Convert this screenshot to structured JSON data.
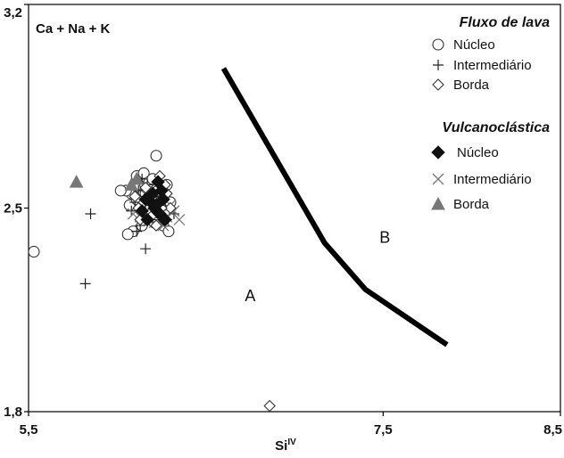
{
  "chart_data": {
    "type": "scatter",
    "xlabel": "Si",
    "xlabel_sup": "IV",
    "ylabel": "Ca + Na + K",
    "xlim": [
      5.5,
      8.5
    ],
    "ylim": [
      1.8,
      3.2
    ],
    "xticks": [
      "5,5",
      "7,5",
      "8,5"
    ],
    "yticks": [
      "1,8",
      "2,5",
      "3,2"
    ],
    "xtick_values": [
      5.5,
      7.5,
      8.5
    ],
    "ytick_values": [
      1.8,
      2.5,
      3.2
    ],
    "grid": false,
    "legend_placement": "top-right",
    "groups": [
      {
        "title": "Fluxo de lava",
        "series": [
          {
            "name": "Núcleo",
            "marker": "circle-open",
            "points": [
              [
                5.53,
                2.35
              ],
              [
                6.22,
                2.68
              ],
              [
                6.11,
                2.61
              ],
              [
                6.15,
                2.62
              ],
              [
                6.12,
                2.58
              ],
              [
                6.1,
                2.57
              ],
              [
                6.18,
                2.59
              ],
              [
                6.25,
                2.54
              ],
              [
                6.2,
                2.53
              ],
              [
                6.16,
                2.55
              ],
              [
                6.08,
                2.55
              ],
              [
                6.05,
                2.56
              ],
              [
                6.13,
                2.51
              ],
              [
                6.19,
                2.5
              ],
              [
                6.27,
                2.49
              ],
              [
                6.3,
                2.52
              ],
              [
                6.24,
                2.47
              ],
              [
                6.17,
                2.47
              ],
              [
                6.21,
                2.45
              ],
              [
                6.26,
                2.44
              ],
              [
                6.29,
                2.42
              ],
              [
                6.09,
                2.42
              ],
              [
                6.14,
                2.44
              ],
              [
                6.23,
                2.56
              ],
              [
                6.28,
                2.58
              ],
              [
                6.02,
                2.56
              ],
              [
                6.07,
                2.51
              ],
              [
                6.11,
                2.53
              ],
              [
                6.2,
                2.6
              ],
              [
                6.06,
                2.41
              ]
            ]
          },
          {
            "name": "Intermediário",
            "marker": "plus",
            "points": [
              [
                5.85,
                2.48
              ],
              [
                6.16,
                2.36
              ],
              [
                5.82,
                2.24
              ],
              [
                6.12,
                2.56
              ],
              [
                6.1,
                2.52
              ],
              [
                6.15,
                2.47
              ],
              [
                6.18,
                2.51
              ],
              [
                6.22,
                2.54
              ],
              [
                6.13,
                2.44
              ],
              [
                6.2,
                2.46
              ],
              [
                6.25,
                2.5
              ],
              [
                6.08,
                2.49
              ],
              [
                6.17,
                2.58
              ],
              [
                6.28,
                2.46
              ],
              [
                6.32,
                2.48
              ],
              [
                6.11,
                2.42
              ],
              [
                6.14,
                2.6
              ]
            ]
          },
          {
            "name": "Borda",
            "marker": "diamond-open",
            "points": [
              [
                6.86,
                1.82
              ],
              [
                6.24,
                2.61
              ],
              [
                6.27,
                2.58
              ],
              [
                6.2,
                2.55
              ],
              [
                6.23,
                2.52
              ],
              [
                6.15,
                2.52
              ],
              [
                6.3,
                2.5
              ],
              [
                6.18,
                2.48
              ],
              [
                6.26,
                2.46
              ],
              [
                6.12,
                2.5
              ],
              [
                6.22,
                2.44
              ],
              [
                6.28,
                2.55
              ],
              [
                6.16,
                2.57
              ],
              [
                6.1,
                2.54
              ],
              [
                6.25,
                2.5
              ],
              [
                6.19,
                2.47
              ],
              [
                6.13,
                2.46
              ]
            ]
          }
        ]
      },
      {
        "title": "Vulcanoclástica",
        "series": [
          {
            "name": "Núcleo",
            "marker": "diamond-filled",
            "points": [
              [
                6.25,
                2.56
              ],
              [
                6.19,
                2.52
              ],
              [
                6.27,
                2.46
              ],
              [
                6.21,
                2.5
              ],
              [
                6.16,
                2.53
              ],
              [
                6.23,
                2.59
              ],
              [
                6.14,
                2.49
              ],
              [
                6.24,
                2.48
              ],
              [
                6.2,
                2.55
              ],
              [
                6.17,
                2.46
              ],
              [
                6.26,
                2.53
              ],
              [
                6.22,
                2.51
              ]
            ]
          },
          {
            "name": "Intermediário",
            "marker": "x",
            "points": [
              [
                6.15,
                2.5
              ],
              [
                6.18,
                2.46
              ],
              [
                6.22,
                2.48
              ],
              [
                6.26,
                2.44
              ],
              [
                6.3,
                2.51
              ],
              [
                6.2,
                2.53
              ],
              [
                6.13,
                2.47
              ],
              [
                6.24,
                2.5
              ],
              [
                6.28,
                2.47
              ],
              [
                6.35,
                2.46
              ],
              [
                6.17,
                2.54
              ],
              [
                6.32,
                2.49
              ],
              [
                6.09,
                2.48
              ],
              [
                6.21,
                2.45
              ]
            ]
          },
          {
            "name": "Borda",
            "marker": "triangle-filled",
            "points": [
              [
                5.77,
                2.59
              ],
              [
                6.11,
                2.6
              ],
              [
                6.08,
                2.58
              ]
            ]
          }
        ]
      }
    ],
    "boundary_line": [
      [
        6.6,
        2.98
      ],
      [
        7.17,
        2.38
      ],
      [
        7.4,
        2.22
      ],
      [
        7.86,
        2.03
      ]
    ],
    "region_labels": [
      {
        "text": "A",
        "x": 6.75,
        "y": 2.18
      },
      {
        "text": "B",
        "x": 7.51,
        "y": 2.38
      }
    ]
  }
}
